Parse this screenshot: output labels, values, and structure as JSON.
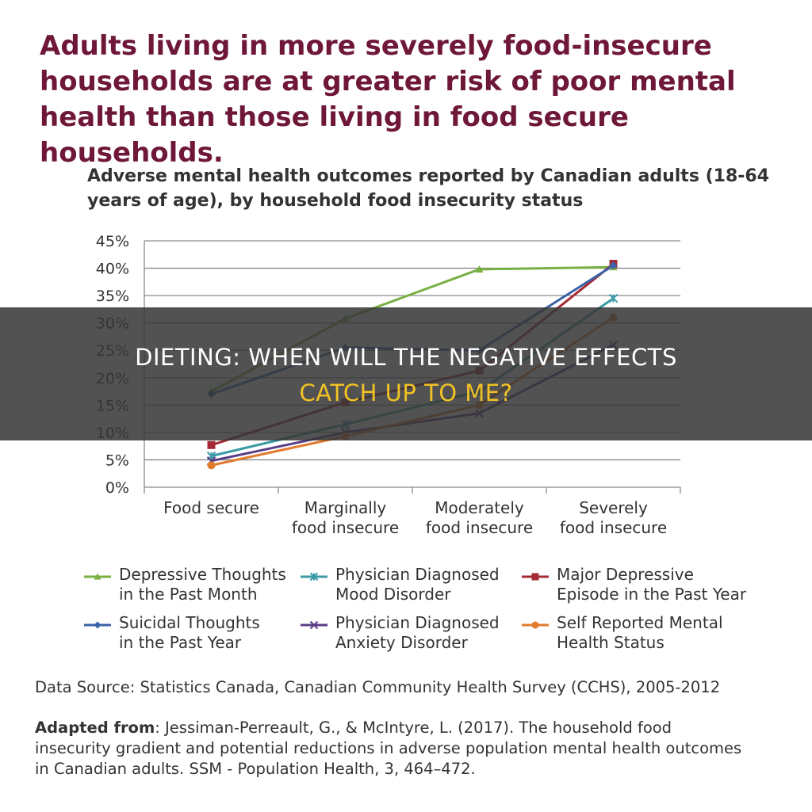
{
  "headline": "Adults living in more severely food-insecure households are at greater risk of poor mental health than those living in food secure households.",
  "banner": {
    "line1": "DIETING: WHEN WILL THE NEGATIVE EFFECTS",
    "line2": "CATCH UP TO ME?",
    "line2_color": "#f2c224"
  },
  "chart_data": {
    "type": "line",
    "title": "Adverse mental health outcomes reported by Canadian adults (18-64 years of age), by household food insecurity status",
    "x_tick_labels": [
      [
        "Food secure"
      ],
      [
        "Marginally",
        "food insecure"
      ],
      [
        "Moderately",
        "food insecure"
      ],
      [
        "Severely",
        "food insecure"
      ]
    ],
    "y_ticks": [
      "0%",
      "5%",
      "10%",
      "15%",
      "20%",
      "25%",
      "30%",
      "35%",
      "40%",
      "45%"
    ],
    "ylim": [
      0,
      45
    ],
    "grid": true,
    "legend_position": "bottom",
    "series": [
      {
        "name": [
          "Depressive Thoughts",
          "in the Past Month"
        ],
        "color": "#78b043",
        "marker": "triangle",
        "values": [
          17.5,
          30.8,
          39.8,
          40.2
        ]
      },
      {
        "name": [
          "Physician Diagnosed",
          "Mood Disorder"
        ],
        "color": "#3a9aa6",
        "marker": "star",
        "values": [
          5.7,
          11.5,
          17.5,
          34.5
        ]
      },
      {
        "name": [
          "Major Depressive",
          "Episode in the Past Year"
        ],
        "color": "#a52a35",
        "marker": "square",
        "values": [
          7.7,
          15.5,
          21.3,
          40.8
        ]
      },
      {
        "name": [
          "Suicidal Thoughts",
          "in the Past Year"
        ],
        "color": "#3b63a8",
        "marker": "diamond",
        "values": [
          17.0,
          25.5,
          25.0,
          40.5
        ]
      },
      {
        "name": [
          "Physician Diagnosed",
          "Anxiety Disorder"
        ],
        "color": "#5a3d86",
        "marker": "x",
        "values": [
          4.8,
          10.0,
          13.5,
          26.0
        ]
      },
      {
        "name": [
          "Self Reported Mental",
          "Health Status"
        ],
        "color": "#e07b2e",
        "marker": "circle",
        "values": [
          4.0,
          9.3,
          15.0,
          31.0
        ]
      }
    ]
  },
  "source": "Data Source: Statistics Canada, Canadian Community Health Survey (CCHS), 2005-2012",
  "adapted": {
    "label": "Adapted from",
    "text": ": Jessiman-Perreault, G., & McIntyre, L. (2017). The household food insecurity gradient and potential reductions in adverse population mental health outcomes in Canadian adults. SSM - Population Health, 3, 464–472."
  }
}
